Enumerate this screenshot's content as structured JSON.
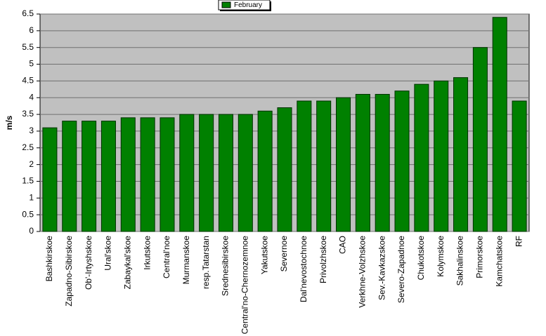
{
  "chart_data": {
    "type": "bar",
    "y_label": "m/s",
    "categories": [
      "Bashkirskoe",
      "Zapadno-Sibirskoe",
      "Ob'-Irtyshskoe",
      "Ural'skoe",
      "Zabaykal'skoe",
      "Irkutskoe",
      "Central'noe",
      "Murmanskoe",
      "resp.Tatarstan",
      "Srednesibirskoe",
      "Central'no-Chernozemnoe",
      "Yakutskoe",
      "Severnoe",
      "Dal'nevostochnoe",
      "Privolzhskoe",
      "CAO",
      "Verkhne-Volzhskoe",
      "Sev.-Kavkazskoe",
      "Severo-Zapadnoe",
      "Chukotskoe",
      "Kolymskoe",
      "Sakhalinskoe",
      "Primorskoe",
      "Kamchatskoe",
      "RF"
    ],
    "series": [
      {
        "name": "February",
        "color": "#008000",
        "values": [
          3.1,
          3.3,
          3.3,
          3.3,
          3.4,
          3.4,
          3.4,
          3.5,
          3.5,
          3.5,
          3.5,
          3.6,
          3.7,
          3.9,
          3.9,
          4.0,
          4.1,
          4.1,
          4.2,
          4.4,
          4.5,
          4.6,
          5.5,
          6.4,
          3.9
        ]
      }
    ],
    "ylim": [
      0,
      6.5
    ],
    "yticks": [
      0,
      0.5,
      1,
      1.5,
      2,
      2.5,
      3,
      3.5,
      4,
      4.5,
      5,
      5.5,
      6,
      6.5
    ],
    "grid": true,
    "legend": "top"
  }
}
